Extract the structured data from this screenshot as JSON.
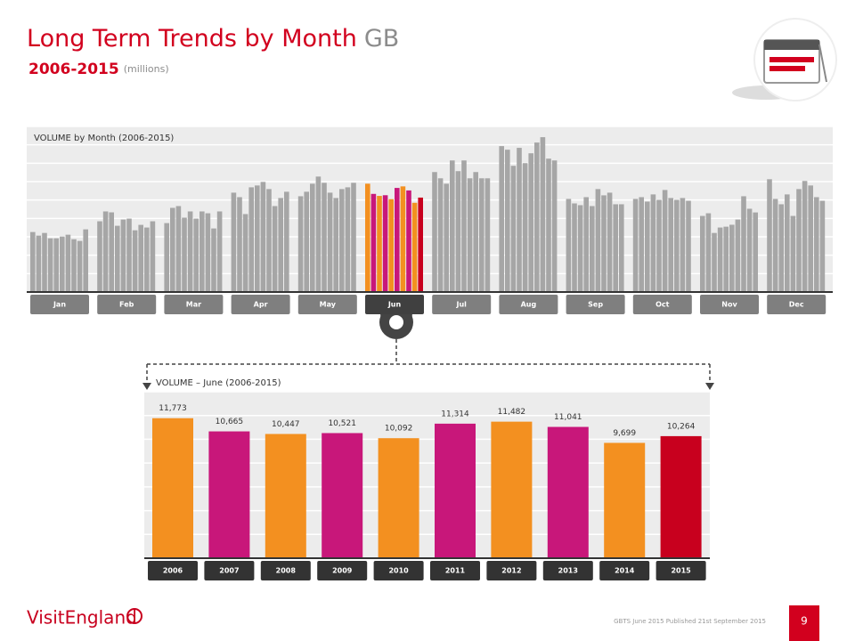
{
  "header": {
    "title": "Long Term Trends by Month",
    "title_suffix": "GB",
    "subtitle": "2006-2015",
    "subtitle_unit": "(millions)"
  },
  "chart_data": [
    {
      "type": "grouped-bar",
      "title": "VOLUME by Month (2006-2015)",
      "categories": [
        "Jan",
        "Feb",
        "Mar",
        "Apr",
        "May",
        "Jun",
        "Jul",
        "Aug",
        "Sep",
        "Oct",
        "Nov",
        "Dec"
      ],
      "series": [
        {
          "color": "#a6a6a6",
          "values": [
            6520,
            7690,
            7490,
            10800,
            10410,
            11773,
            13040,
            15860,
            10120,
            10120,
            8270,
            12260
          ]
        },
        {
          "color": "#a6a6a6",
          "values": [
            6130,
            8760,
            9150,
            10310,
            10900,
            10665,
            12360,
            15470,
            9630,
            10310,
            8560,
            10120
          ]
        },
        {
          "color": "#a6a6a6",
          "values": [
            6420,
            8660,
            9340,
            8470,
            11770,
            10447,
            11770,
            13720,
            9440,
            9830,
            6420,
            9540
          ]
        },
        {
          "color": "#a6a6a6",
          "values": [
            5840,
            7200,
            8080,
            11380,
            12550,
            10521,
            14300,
            15670,
            10310,
            10610,
            7010,
            10610
          ]
        },
        {
          "color": "#a6a6a6",
          "values": [
            5840,
            7880,
            8760,
            11580,
            11870,
            10092,
            13140,
            14010,
            9340,
            10020,
            7100,
            8270
          ]
        },
        {
          "color": "#a6a6a6",
          "values": [
            6030,
            7980,
            7980,
            11970,
            10800,
            11314,
            14300,
            15080,
            11190,
            11090,
            7310,
            11190
          ]
        },
        {
          "color": "#a6a6a6",
          "values": [
            6230,
            6710,
            8760,
            11190,
            10220,
            11482,
            12360,
            16250,
            10510,
            10220,
            7880,
            12070
          ]
        },
        {
          "color": "#a6a6a6",
          "values": [
            5740,
            7300,
            8560,
            9340,
            11190,
            11041,
            13040,
            16830,
            10800,
            10020,
            10410,
            11580
          ]
        },
        {
          "color": "#a6a6a6",
          "values": [
            5550,
            7010,
            6910,
            10220,
            11380,
            9699,
            12360,
            14500,
            9540,
            10220,
            9050,
            10310
          ]
        },
        {
          "color": "#a6a6a6",
          "values": [
            6810,
            7690,
            8760,
            10900,
            11870,
            10264,
            12360,
            14300,
            9540,
            9920,
            8650,
            9920
          ]
        }
      ],
      "highlight_index": 5,
      "highlight_colors": [
        "#f39020",
        "#c8177a",
        "#f39020",
        "#c8177a",
        "#f39020",
        "#c8177a",
        "#f39020",
        "#c8177a",
        "#f39020",
        "#c8001e"
      ],
      "ylim": [
        0,
        18000
      ],
      "yticks": [
        0,
        2000,
        4000,
        6000,
        8000,
        10000,
        12000,
        14000,
        16000,
        18000
      ],
      "grid": true
    },
    {
      "type": "bar",
      "title": "VOLUME – June (2006-2015)",
      "categories": [
        "2006",
        "2007",
        "2008",
        "2009",
        "2010",
        "2011",
        "2012",
        "2013",
        "2014",
        "2015"
      ],
      "values": [
        11773,
        10665,
        10447,
        10521,
        10092,
        11314,
        11482,
        11041,
        9699,
        10264
      ],
      "value_labels": [
        "11,773",
        "10,665",
        "10,447",
        "10,521",
        "10,092",
        "11,314",
        "11,482",
        "11,041",
        "9,699",
        "10,264"
      ],
      "colors": [
        "#f39020",
        "#c8177a",
        "#f39020",
        "#c8177a",
        "#f39020",
        "#c8177a",
        "#f39020",
        "#c8177a",
        "#f39020",
        "#c8001e"
      ],
      "ylim": [
        0,
        14000
      ],
      "yticks": [
        0,
        2000,
        4000,
        6000,
        8000,
        10000,
        12000,
        14000
      ],
      "grid": true
    }
  ],
  "footer": {
    "logo": "VisitEngland",
    "note": "GBTS June 2015 Published 21st September 2015",
    "page": "9"
  }
}
